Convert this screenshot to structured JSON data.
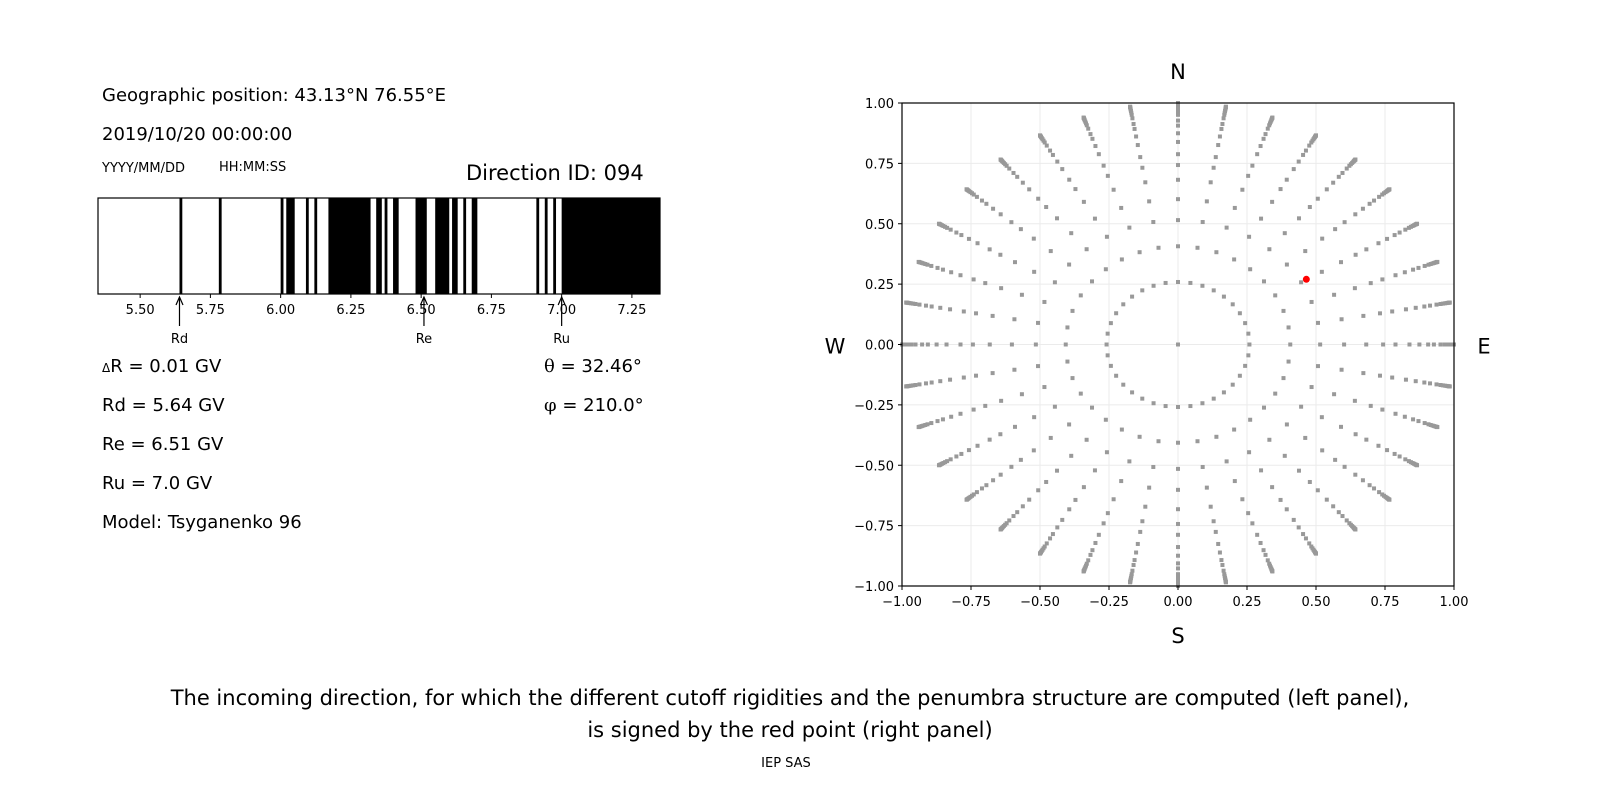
{
  "left_panel": {
    "geo_position": "Geographic position: 43.13°N 76.55°E",
    "datetime": "2019/10/20 00:00:00",
    "date_format": "YYYY/MM/DD",
    "time_format": "HH:MM:SS",
    "direction_id": "Direction ID: 094",
    "delta_symbol": "Δ",
    "delta_r": "R = 0.01 GV",
    "rd": "Rd = 5.64 GV",
    "re": "Re = 6.51 GV",
    "ru": "Ru = 7.0 GV",
    "model": "Model: Tsyganenko 96",
    "theta_symbol": "θ",
    "theta": "= 32.46°",
    "phi_symbol": "φ",
    "phi": "= 210.0°"
  },
  "caption": {
    "line1": "The incoming direction, for which the different cutoff rigidities and the penumbra structure are computed (left panel),",
    "line2": "is signed by the red point (right panel)",
    "credit": "IEP SAS"
  },
  "chart_data": [
    {
      "type": "bar",
      "subtype": "penumbra-structure",
      "xlim": [
        5.35,
        7.35
      ],
      "xticks": [
        5.5,
        5.75,
        6.0,
        6.25,
        6.5,
        6.75,
        7.0,
        7.25
      ],
      "xtick_labels": [
        "5.50",
        "5.75",
        "6.00",
        "6.25",
        "6.50",
        "6.75",
        "7.00",
        "7.25"
      ],
      "band_color": "#000000",
      "forbidden_bands": [
        [
          5.64,
          5.65
        ],
        [
          5.78,
          5.79
        ],
        [
          6.0,
          6.01
        ],
        [
          6.02,
          6.05
        ],
        [
          6.09,
          6.1
        ],
        [
          6.12,
          6.13
        ],
        [
          6.17,
          6.32
        ],
        [
          6.34,
          6.36
        ],
        [
          6.37,
          6.38
        ],
        [
          6.4,
          6.42
        ],
        [
          6.48,
          6.52
        ],
        [
          6.55,
          6.6
        ],
        [
          6.61,
          6.63
        ],
        [
          6.65,
          6.66
        ],
        [
          6.68,
          6.7
        ],
        [
          6.91,
          6.92
        ],
        [
          6.94,
          6.95
        ],
        [
          6.97,
          6.98
        ],
        [
          7.0,
          7.35
        ]
      ],
      "markers": [
        {
          "label": "Rd",
          "value": 5.64
        },
        {
          "label": "Re",
          "value": 6.51
        },
        {
          "label": "Ru",
          "value": 7.0
        }
      ]
    },
    {
      "type": "scatter",
      "subtype": "direction-grid",
      "xlim": [
        -1.0,
        1.0
      ],
      "ylim": [
        -1.0,
        1.0
      ],
      "xticks": [
        -1.0,
        -0.75,
        -0.5,
        -0.25,
        0.0,
        0.25,
        0.5,
        0.75,
        1.0
      ],
      "xtick_labels": [
        "−1.00",
        "−0.75",
        "−0.50",
        "−0.25",
        "0.00",
        "0.25",
        "0.50",
        "0.75",
        "1.00"
      ],
      "yticks": [
        -1.0,
        -0.75,
        -0.5,
        -0.25,
        0.0,
        0.25,
        0.5,
        0.75,
        1.0
      ],
      "ytick_labels": [
        "−1.00",
        "−0.75",
        "−0.50",
        "−0.25",
        "0.00",
        "0.25",
        "0.50",
        "0.75",
        "1.00"
      ],
      "grid": true,
      "compass": {
        "north": "N",
        "south": "S",
        "west": "W",
        "east": "E"
      },
      "grid_points": {
        "azimuth_step_deg": 10,
        "zenith_deg": [
          15,
          24,
          31,
          37,
          43,
          48,
          52,
          57,
          61,
          65,
          68,
          72,
          75,
          77,
          79,
          81,
          83,
          85,
          87,
          90
        ],
        "center": [
          0.0,
          0.0
        ],
        "color": "#999999"
      },
      "selected_point": {
        "x": 0.465,
        "y": 0.27,
        "color": "#ff0000"
      }
    }
  ]
}
